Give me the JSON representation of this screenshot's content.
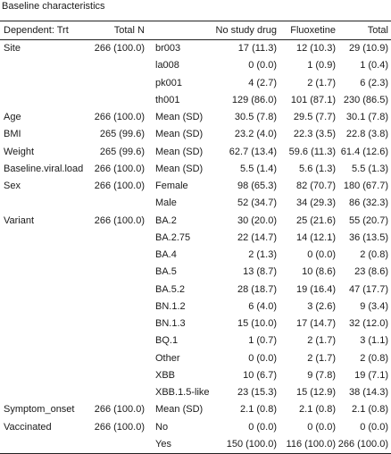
{
  "title": "Baseline characteristics",
  "header": [
    "Dependent: Trt",
    "Total N",
    "",
    "No study drug",
    "Fluoxetine",
    "Total"
  ],
  "rows": [
    [
      "Site",
      "266 (100.0)",
      "br003",
      "17 (11.3)",
      "12 (10.3)",
      "29 (10.9)"
    ],
    [
      "",
      "",
      "la008",
      "0 (0.0)",
      "1 (0.9)",
      "1 (0.4)"
    ],
    [
      "",
      "",
      "pk001",
      "4 (2.7)",
      "2 (1.7)",
      "6 (2.3)"
    ],
    [
      "",
      "",
      "th001",
      "129 (86.0)",
      "101 (87.1)",
      "230 (86.5)"
    ],
    [
      "Age",
      "266 (100.0)",
      "Mean (SD)",
      "30.5 (7.8)",
      "29.5 (7.7)",
      "30.1 (7.8)"
    ],
    [
      "BMI",
      "265 (99.6)",
      "Mean (SD)",
      "23.2 (4.0)",
      "22.3 (3.5)",
      "22.8 (3.8)"
    ],
    [
      "Weight",
      "265 (99.6)",
      "Mean (SD)",
      "62.7 (13.4)",
      "59.6 (11.3)",
      "61.4 (12.6)"
    ],
    [
      "Baseline.viral.load",
      "266 (100.0)",
      "Mean (SD)",
      "5.5 (1.4)",
      "5.6 (1.3)",
      "5.5 (1.3)"
    ],
    [
      "Sex",
      "266 (100.0)",
      "Female",
      "98 (65.3)",
      "82 (70.7)",
      "180 (67.7)"
    ],
    [
      "",
      "",
      "Male",
      "52 (34.7)",
      "34 (29.3)",
      "86 (32.3)"
    ],
    [
      "Variant",
      "266 (100.0)",
      "BA.2",
      "30 (20.0)",
      "25 (21.6)",
      "55 (20.7)"
    ],
    [
      "",
      "",
      "BA.2.75",
      "22 (14.7)",
      "14 (12.1)",
      "36 (13.5)"
    ],
    [
      "",
      "",
      "BA.4",
      "2 (1.3)",
      "0 (0.0)",
      "2 (0.8)"
    ],
    [
      "",
      "",
      "BA.5",
      "13 (8.7)",
      "10 (8.6)",
      "23 (8.6)"
    ],
    [
      "",
      "",
      "BA.5.2",
      "28 (18.7)",
      "19 (16.4)",
      "47 (17.7)"
    ],
    [
      "",
      "",
      "BN.1.2",
      "6 (4.0)",
      "3 (2.6)",
      "9 (3.4)"
    ],
    [
      "",
      "",
      "BN.1.3",
      "15 (10.0)",
      "17 (14.7)",
      "32 (12.0)"
    ],
    [
      "",
      "",
      "BQ.1",
      "1 (0.7)",
      "2 (1.7)",
      "3 (1.1)"
    ],
    [
      "",
      "",
      "Other",
      "0 (0.0)",
      "2 (1.7)",
      "2 (0.8)"
    ],
    [
      "",
      "",
      "XBB",
      "10 (6.7)",
      "9 (7.8)",
      "19 (7.1)"
    ],
    [
      "",
      "",
      "XBB.1.5-like",
      "23 (15.3)",
      "15 (12.9)",
      "38 (14.3)"
    ],
    [
      "Symptom_onset",
      "266 (100.0)",
      "Mean (SD)",
      "2.1 (0.8)",
      "2.1 (0.8)",
      "2.1 (0.8)"
    ],
    [
      "Vaccinated",
      "266 (100.0)",
      "No",
      "0 (0.0)",
      "0 (0.0)",
      "0 (0.0)"
    ],
    [
      "",
      "",
      "Yes",
      "150 (100.0)",
      "116 (100.0)",
      "266 (100.0)"
    ]
  ]
}
